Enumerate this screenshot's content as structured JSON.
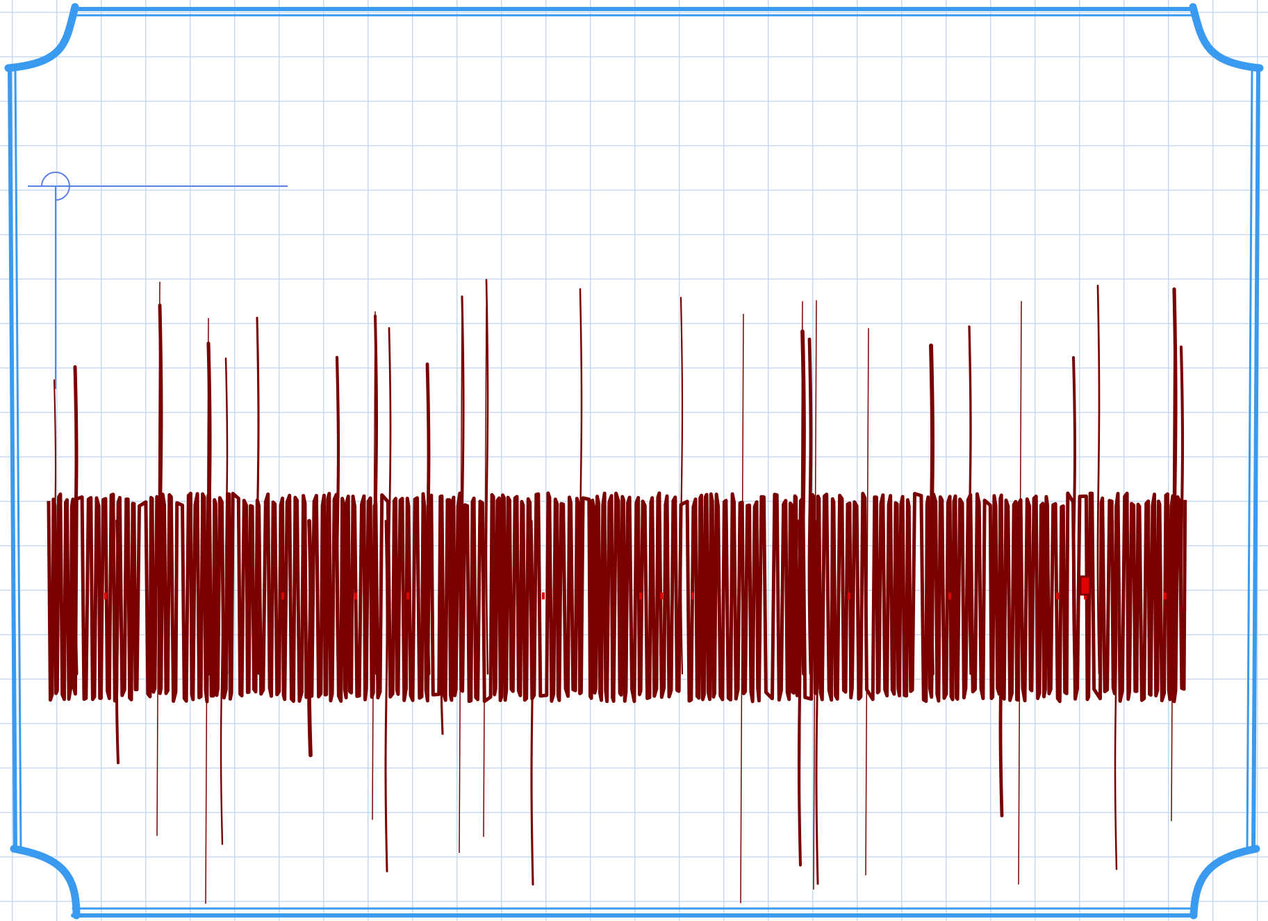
{
  "canvas": {
    "grid_color": "#c6daf6",
    "background_color": "#ffffff"
  },
  "frame": {
    "color": "#3a9af0",
    "style": "double-line border with rounded notched corners"
  },
  "crosshair": {
    "color": "#5b7fe8",
    "icon": "crosshair-icon"
  },
  "ink_stroke": {
    "color": "#7a0000",
    "accent_color": "#e00000",
    "text": ""
  }
}
